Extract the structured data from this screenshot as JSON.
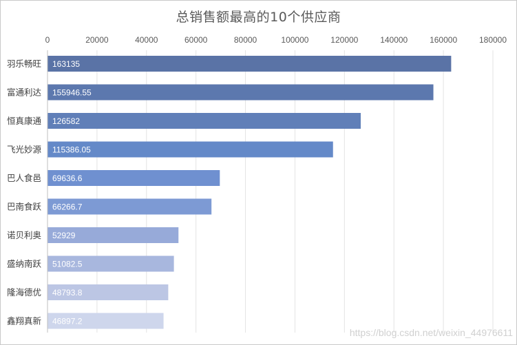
{
  "chart_data": {
    "type": "bar",
    "orientation": "horizontal",
    "title": "总销售额最高的10个供应商",
    "categories": [
      "羽乐畅旺",
      "富通利达",
      "恒真康通",
      "飞光妙源",
      "巴人食邑",
      "巴南食跃",
      "诺贝利奥",
      "盛纳南跃",
      "隆海德优",
      "鑫翔真新"
    ],
    "values": [
      163135,
      155946.55,
      126582,
      115386.05,
      69636.6,
      66266.7,
      52929,
      51082.5,
      48793.8,
      46897.2
    ],
    "value_labels": [
      "163135",
      "155946.55",
      "126582",
      "115386.05",
      "69636.6",
      "66266.7",
      "52929",
      "51082.5",
      "48793.8",
      "46897.2"
    ],
    "xlim": [
      0,
      180000
    ],
    "xticks": [
      0,
      20000,
      40000,
      60000,
      80000,
      100000,
      120000,
      140000,
      160000,
      180000
    ],
    "xtick_labels": [
      "0",
      "20000",
      "40000",
      "60000",
      "80000",
      "100000",
      "120000",
      "140000",
      "160000",
      "180000"
    ],
    "x_axis_position": "top",
    "grid": true,
    "legend": "none",
    "colors": [
      "#5a73a6",
      "#5c78ae",
      "#607fb8",
      "#6489c8",
      "#6f90d0",
      "#7d9ad4",
      "#97aad9",
      "#a8b7de",
      "#bcc6e4",
      "#ced6ec"
    ]
  },
  "watermark": "https://blog.csdn.net/weixin_44976611"
}
